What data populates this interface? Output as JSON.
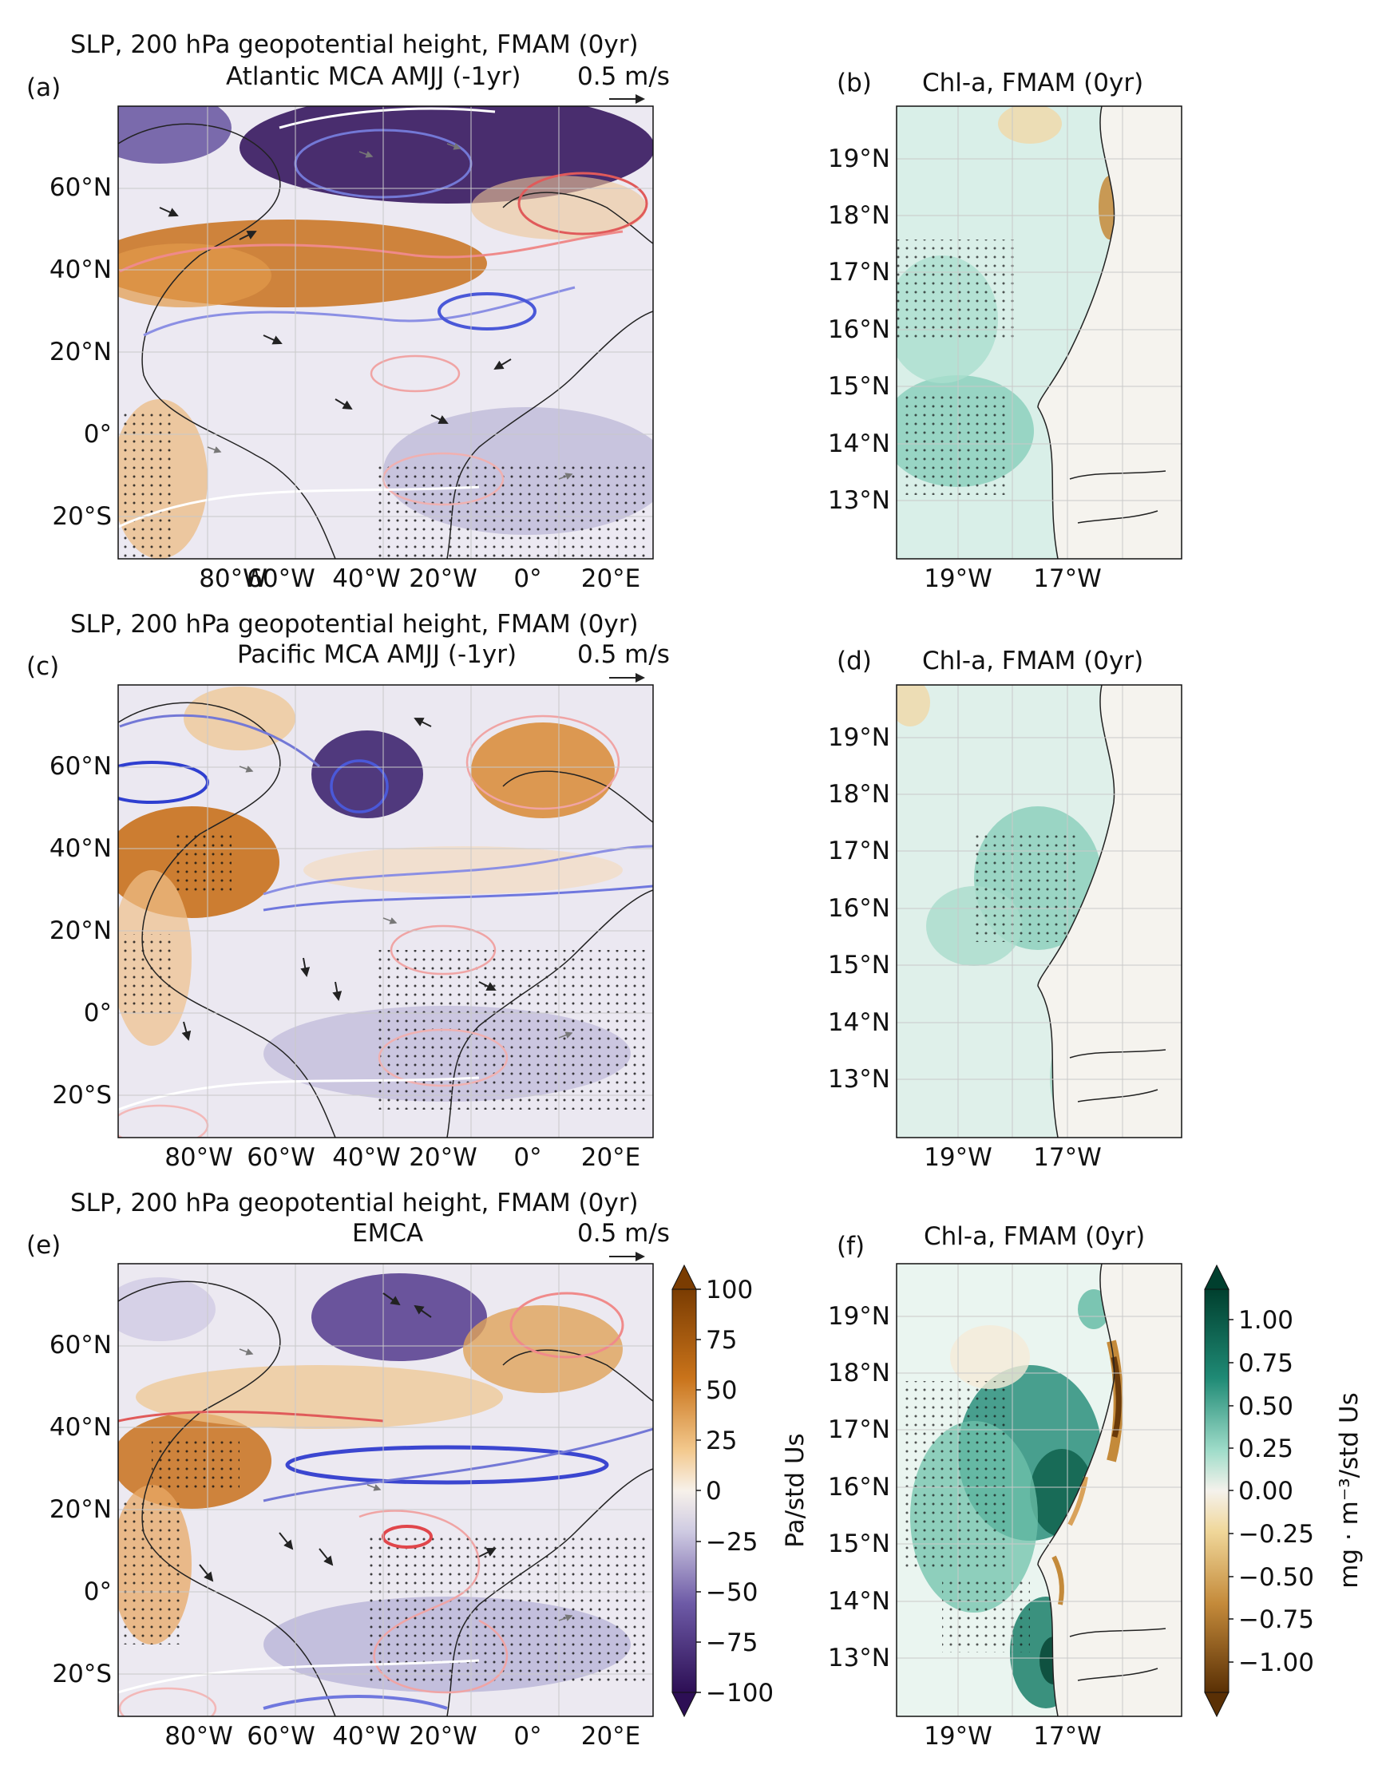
{
  "panels": [
    {
      "letter": "(a)",
      "title_line1": "SLP, 200 hPa geopotential height, FMAM (0yr)",
      "title_line2": "Atlantic MCA AMJJ (-1yr)",
      "scale_label": "0.5 m/s",
      "lon_labels": [
        "80°W",
        "60°W",
        "40°W",
        "20°W",
        "0°",
        "20°E"
      ],
      "lat_labels": [
        "60°N",
        "40°N",
        "20°N",
        "0°",
        "20°S"
      ]
    },
    {
      "letter": "(b)",
      "title": "Chl-a, FMAM (0yr)",
      "lon_labels": [
        "19°W",
        "17°W"
      ],
      "lat_labels": [
        "19°N",
        "18°N",
        "17°N",
        "16°N",
        "15°N",
        "14°N",
        "13°N"
      ]
    },
    {
      "letter": "(c)",
      "title_line1": "SLP, 200 hPa geopotential height, FMAM (0yr)",
      "title_line2": "Pacific MCA AMJJ (-1yr)",
      "scale_label": "0.5 m/s",
      "lon_labels": [
        "80°W",
        "60°W",
        "40°W",
        "20°W",
        "0°",
        "20°E"
      ],
      "lat_labels": [
        "60°N",
        "40°N",
        "20°N",
        "0°",
        "20°S"
      ]
    },
    {
      "letter": "(d)",
      "title": "Chl-a, FMAM (0yr)",
      "lon_labels": [
        "19°W",
        "17°W"
      ],
      "lat_labels": [
        "19°N",
        "18°N",
        "17°N",
        "16°N",
        "15°N",
        "14°N",
        "13°N"
      ]
    },
    {
      "letter": "(e)",
      "title_line1": "SLP, 200 hPa geopotential height, FMAM (0yr)",
      "title_line2": "EMCA",
      "scale_label": "0.5 m/s",
      "lon_labels": [
        "80°W",
        "60°W",
        "40°W",
        "20°W",
        "0°",
        "20°E"
      ],
      "lat_labels": [
        "60°N",
        "40°N",
        "20°N",
        "0°",
        "20°S"
      ]
    },
    {
      "letter": "(f)",
      "title": "Chl-a, FMAM (0yr)",
      "lon_labels": [
        "19°W",
        "17°W"
      ],
      "lat_labels": [
        "19°N",
        "18°N",
        "17°N",
        "16°N",
        "15°N",
        "14°N",
        "13°N"
      ]
    }
  ],
  "colorbar_slp": {
    "label": "Pa/std Us",
    "ticks": [
      "100",
      "75",
      "50",
      "25",
      "0",
      "−25",
      "−50",
      "−75",
      "−100"
    ],
    "colors": [
      "#7a3c02",
      "#c9731a",
      "#f3c98e",
      "#f7f1ea",
      "#cfcbe2",
      "#6d5aa6",
      "#2d0f55"
    ]
  },
  "colorbar_chl": {
    "label": "mg · m⁻³/std Us",
    "ticks": [
      "1.00",
      "0.75",
      "0.50",
      "0.25",
      "0.00",
      "−0.25",
      "−0.50",
      "−0.75",
      "−1.00"
    ],
    "colors": [
      "#003f2e",
      "#1f8a75",
      "#9fdcc9",
      "#f5f2ec",
      "#f0d79a",
      "#c48a3a",
      "#5a3005"
    ]
  }
}
